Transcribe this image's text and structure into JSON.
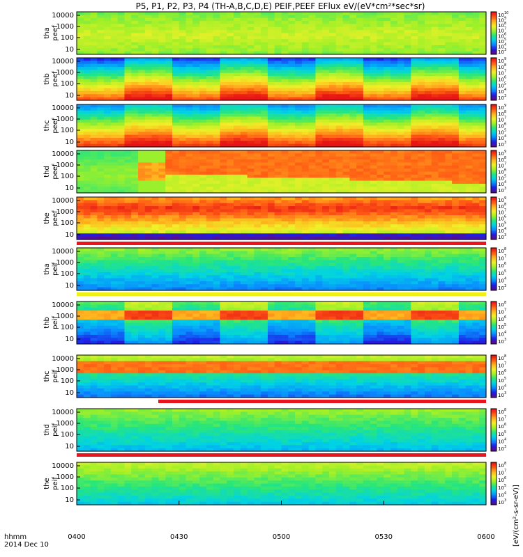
{
  "chart_data": {
    "type": "heatmap",
    "title": "P5, P1, P2, P3, P4 (TH-A,B,C,D,E) PEIF,PEEF EFlux eV/(eV*cm²*sec*sr)",
    "time_axis": {
      "ticks": [
        "0400",
        "0430",
        "0500",
        "0530",
        "0600"
      ],
      "label": "hhmm",
      "date": "2014 Dec 10"
    },
    "y_ticks": [
      "10000",
      "1000",
      "100",
      "10"
    ],
    "colorbar_label": "[eV/(cm²-s-sr-eV)]",
    "panels": [
      {
        "label": [
          "tha",
          "peef"
        ],
        "colorbar": {
          "max": "10",
          "ticks": [
            "10",
            "9",
            "8",
            "7",
            "6",
            "5",
            "4",
            "3"
          ]
        },
        "status_bar": "none"
      },
      {
        "label": [
          "thb",
          "peef"
        ],
        "colorbar": {
          "max": "9",
          "ticks": [
            "9",
            "8",
            "7",
            "6",
            "5",
            "4",
            "3"
          ]
        },
        "status_bar": "none"
      },
      {
        "label": [
          "thc",
          "peef"
        ],
        "colorbar": {
          "max": "9",
          "ticks": [
            "9",
            "8",
            "7",
            "6",
            "5",
            "4",
            "3"
          ]
        },
        "status_bar": "none"
      },
      {
        "label": [
          "thd",
          "peef"
        ],
        "colorbar": {
          "max": "9",
          "ticks": [
            "9",
            "8",
            "7",
            "6",
            "5",
            "4",
            "3"
          ]
        },
        "status_bar": "none"
      },
      {
        "label": [
          "the",
          "peef"
        ],
        "colorbar": {
          "max": "9",
          "ticks": [
            "9",
            "8",
            "7",
            "6",
            "5",
            "4",
            "3"
          ]
        },
        "status_bar": "full-red"
      },
      {
        "label": [
          "tha",
          "peif"
        ],
        "colorbar": {
          "max": "8",
          "ticks": [
            "8",
            "7",
            "6",
            "5",
            "4",
            "3"
          ]
        },
        "status_bar": "full-yellow"
      },
      {
        "label": [
          "thb",
          "peif"
        ],
        "colorbar": {
          "max": "8",
          "ticks": [
            "8",
            "7",
            "6",
            "5",
            "4",
            "3"
          ]
        },
        "status_bar": "none"
      },
      {
        "label": [
          "thc",
          "peif"
        ],
        "colorbar": {
          "max": "8",
          "ticks": [
            "8",
            "7",
            "6",
            "5",
            "4",
            "3"
          ]
        },
        "status_bar": "partial-red"
      },
      {
        "label": [
          "thd",
          "peif"
        ],
        "colorbar": {
          "max": "8",
          "ticks": [
            "8",
            "7",
            "6",
            "5",
            "4",
            "3"
          ]
        },
        "status_bar": "full-red"
      },
      {
        "label": [
          "the",
          "peif"
        ],
        "colorbar": {
          "max": "8",
          "ticks": [
            "8",
            "7",
            "6",
            "5",
            "4",
            "3"
          ]
        },
        "status_bar": "none"
      }
    ]
  },
  "colors": {
    "palette": [
      "#5a0a8c",
      "#1f1fe6",
      "#0a8cff",
      "#00d2e6",
      "#28e67a",
      "#a0f028",
      "#f0f028",
      "#ffb41e",
      "#ff5a14",
      "#e61414"
    ],
    "status_red": "#e8141e",
    "status_yellow": "#f0f014"
  }
}
